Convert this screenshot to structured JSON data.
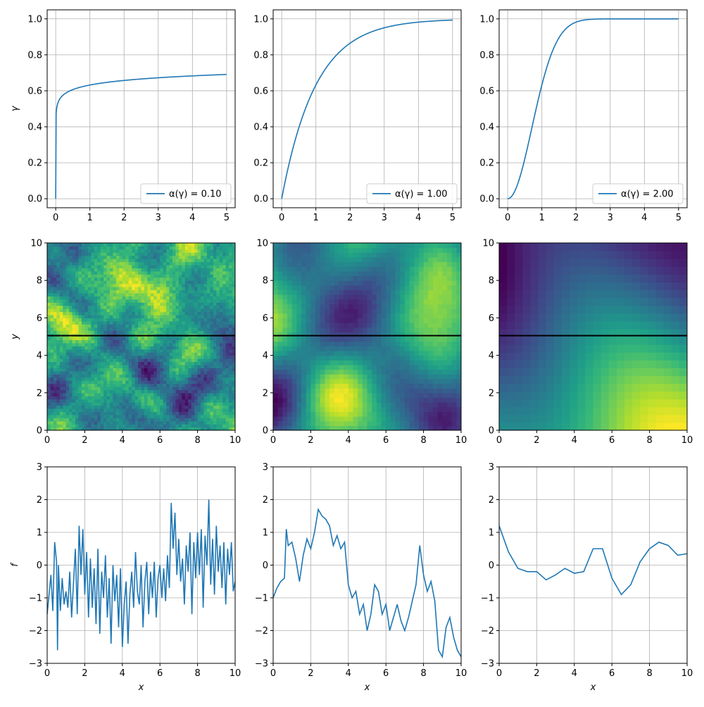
{
  "colors": {
    "line": "#1f77b4",
    "grid": "#b0b0b0",
    "hline": "#000000",
    "axis": "#000000"
  },
  "row_labels": {
    "row1_ylabel": "γ",
    "row2_ylabel": "y",
    "row3_ylabel": "f",
    "xlabel": "x"
  },
  "chart_data": [
    {
      "id": "p11",
      "type": "line",
      "grid": true,
      "xlim": [
        -0.25,
        5.25
      ],
      "ylim": [
        -0.05,
        1.05
      ],
      "xticks": [
        "0",
        "1",
        "2",
        "3",
        "4",
        "5"
      ],
      "yticks": [
        "0.0",
        "0.2",
        "0.4",
        "0.6",
        "0.8",
        "1.0"
      ],
      "ylabel": "γ",
      "alpha": 0.1,
      "legend": {
        "prefix": "α(γ) = ",
        "value": "0.10",
        "loc": "lower-right"
      },
      "series": [
        {
          "x": [
            0,
            5
          ],
          "function": "1 - exp(-x^alpha)"
        }
      ]
    },
    {
      "id": "p12",
      "type": "line",
      "grid": true,
      "xlim": [
        -0.25,
        5.25
      ],
      "ylim": [
        -0.05,
        1.05
      ],
      "xticks": [
        "0",
        "1",
        "2",
        "3",
        "4",
        "5"
      ],
      "yticks": [
        "0.0",
        "0.2",
        "0.4",
        "0.6",
        "0.8",
        "1.0"
      ],
      "alpha": 1.0,
      "legend": {
        "prefix": "α(γ) = ",
        "value": "1.00",
        "loc": "lower-right"
      },
      "series": [
        {
          "x": [
            0,
            5
          ],
          "function": "1 - exp(-x^alpha)"
        }
      ]
    },
    {
      "id": "p13",
      "type": "line",
      "grid": true,
      "xlim": [
        -0.25,
        5.25
      ],
      "ylim": [
        -0.05,
        1.05
      ],
      "xticks": [
        "0",
        "1",
        "2",
        "3",
        "4",
        "5"
      ],
      "yticks": [
        "0.0",
        "0.2",
        "0.4",
        "0.6",
        "0.8",
        "1.0"
      ],
      "alpha": 2.0,
      "legend": {
        "prefix": "α(γ) = ",
        "value": "2.00",
        "loc": "lower-right"
      },
      "series": [
        {
          "x": [
            0,
            5
          ],
          "function": "1 - exp(-x^alpha)"
        }
      ]
    },
    {
      "id": "p21",
      "type": "heatmap",
      "colormap": "viridis",
      "xlim": [
        0,
        10
      ],
      "ylim": [
        0,
        10
      ],
      "xticks": [
        "0",
        "2",
        "4",
        "6",
        "8",
        "10"
      ],
      "yticks": [
        "0",
        "2",
        "4",
        "6",
        "8",
        "10"
      ],
      "ylabel": "y",
      "hline_y": 5.05,
      "roughness": "high"
    },
    {
      "id": "p22",
      "type": "heatmap",
      "colormap": "viridis",
      "xlim": [
        0,
        10
      ],
      "ylim": [
        0,
        10
      ],
      "xticks": [
        "0",
        "2",
        "4",
        "6",
        "8",
        "10"
      ],
      "yticks": [
        "0",
        "2",
        "4",
        "6",
        "8",
        "10"
      ],
      "hline_y": 5.05,
      "roughness": "medium"
    },
    {
      "id": "p23",
      "type": "heatmap",
      "colormap": "viridis",
      "xlim": [
        0,
        10
      ],
      "ylim": [
        0,
        10
      ],
      "xticks": [
        "0",
        "2",
        "4",
        "6",
        "8",
        "10"
      ],
      "yticks": [
        "0",
        "2",
        "4",
        "6",
        "8",
        "10"
      ],
      "hline_y": 5.05,
      "roughness": "smooth"
    },
    {
      "id": "p31",
      "type": "line",
      "grid": true,
      "xlim": [
        0,
        10
      ],
      "ylim": [
        -3,
        3
      ],
      "xticks": [
        "0",
        "2",
        "4",
        "6",
        "8",
        "10"
      ],
      "yticks": [
        "−3",
        "−2",
        "−1",
        "0",
        "1",
        "2",
        "3"
      ],
      "ylabel": "f",
      "xlabel": "x",
      "series": [
        {
          "x": [
            0,
            0.2,
            0.3,
            0.4,
            0.5,
            0.55,
            0.6,
            0.7,
            0.8,
            0.9,
            1.0,
            1.1,
            1.2,
            1.3,
            1.5,
            1.6,
            1.7,
            1.8,
            1.9,
            2.0,
            2.1,
            2.2,
            2.3,
            2.4,
            2.5,
            2.6,
            2.7,
            2.8,
            2.9,
            3.0,
            3.1,
            3.2,
            3.3,
            3.4,
            3.5,
            3.6,
            3.7,
            3.8,
            3.9,
            4.0,
            4.1,
            4.2,
            4.3,
            4.4,
            4.5,
            4.6,
            4.7,
            4.8,
            4.9,
            5.0,
            5.1,
            5.2,
            5.3,
            5.4,
            5.5,
            5.6,
            5.7,
            5.8,
            5.9,
            6.0,
            6.1,
            6.2,
            6.3,
            6.4,
            6.5,
            6.6,
            6.7,
            6.8,
            6.9,
            7.0,
            7.1,
            7.2,
            7.3,
            7.4,
            7.5,
            7.6,
            7.7,
            7.8,
            7.9,
            8.0,
            8.1,
            8.2,
            8.3,
            8.4,
            8.5,
            8.6,
            8.7,
            8.8,
            8.9,
            9.0,
            9.1,
            9.2,
            9.3,
            9.4,
            9.5,
            9.6,
            9.7,
            9.8,
            9.9,
            10.0
          ],
          "y": [
            -1.5,
            -0.3,
            -1.4,
            0.7,
            0.1,
            -2.6,
            0.0,
            -1.4,
            -0.4,
            -1.2,
            -0.8,
            -1.3,
            -0.2,
            -1.6,
            0.5,
            -1.5,
            1.2,
            -0.3,
            1.1,
            -0.9,
            0.4,
            -1.6,
            0.2,
            -1.3,
            -0.1,
            -1.8,
            0.5,
            -2.1,
            -0.2,
            -1.0,
            0.3,
            -1.6,
            -0.4,
            -2.4,
            0.0,
            -1.1,
            -0.3,
            -1.9,
            -0.1,
            -2.5,
            -1.2,
            -0.5,
            -2.4,
            -0.9,
            -0.2,
            -1.3,
            0.4,
            -0.8,
            -1.2,
            0.0,
            -1.9,
            -0.5,
            0.1,
            -1.5,
            -0.2,
            -1.0,
            0.1,
            -1.6,
            -0.4,
            0.0,
            -1.0,
            -0.1,
            -1.1,
            0.3,
            -0.7,
            1.9,
            0.5,
            1.6,
            -0.3,
            0.8,
            -0.5,
            0.2,
            -1.2,
            0.6,
            -0.2,
            1.0,
            -1.5,
            0.7,
            -0.4,
            1.0,
            -0.3,
            1.1,
            -1.3,
            0.9,
            0.0,
            2.0,
            -0.6,
            0.8,
            -0.9,
            1.2,
            -0.2,
            0.6,
            -0.7,
            0.7,
            -1.2,
            0.5,
            -0.3,
            0.7,
            -0.8,
            -0.5
          ]
        }
      ]
    },
    {
      "id": "p32",
      "type": "line",
      "grid": true,
      "xlim": [
        0,
        10
      ],
      "ylim": [
        -3,
        3
      ],
      "xticks": [
        "0",
        "2",
        "4",
        "6",
        "8",
        "10"
      ],
      "yticks": [
        "−3",
        "−2",
        "−1",
        "0",
        "1",
        "2",
        "3"
      ],
      "xlabel": "x",
      "series": [
        {
          "x": [
            0,
            0.2,
            0.4,
            0.6,
            0.7,
            0.8,
            1.0,
            1.2,
            1.4,
            1.6,
            1.8,
            2.0,
            2.2,
            2.4,
            2.6,
            2.8,
            3.0,
            3.2,
            3.4,
            3.6,
            3.8,
            4.0,
            4.2,
            4.4,
            4.6,
            4.8,
            5.0,
            5.2,
            5.4,
            5.6,
            5.8,
            6.0,
            6.2,
            6.4,
            6.6,
            6.8,
            7.0,
            7.2,
            7.4,
            7.6,
            7.8,
            8.0,
            8.2,
            8.4,
            8.6,
            8.8,
            9.0,
            9.2,
            9.4,
            9.6,
            9.8,
            10.0
          ],
          "y": [
            -1.0,
            -0.7,
            -0.5,
            -0.4,
            1.1,
            0.6,
            0.7,
            0.2,
            -0.5,
            0.3,
            0.8,
            0.5,
            1.0,
            1.7,
            1.5,
            1.4,
            1.2,
            0.6,
            0.9,
            0.5,
            0.7,
            -0.6,
            -1.0,
            -0.8,
            -1.5,
            -1.2,
            -2.0,
            -1.5,
            -0.6,
            -0.8,
            -1.5,
            -1.2,
            -2.0,
            -1.6,
            -1.2,
            -1.7,
            -2.0,
            -1.6,
            -1.1,
            -0.6,
            0.6,
            -0.3,
            -0.8,
            -0.5,
            -1.1,
            -2.6,
            -2.8,
            -1.9,
            -1.6,
            -2.2,
            -2.6,
            -2.8
          ]
        }
      ]
    },
    {
      "id": "p33",
      "type": "line",
      "grid": true,
      "xlim": [
        0,
        10
      ],
      "ylim": [
        -3,
        3
      ],
      "xticks": [
        "0",
        "2",
        "4",
        "6",
        "8",
        "10"
      ],
      "yticks": [
        "−3",
        "−2",
        "−1",
        "0",
        "1",
        "2",
        "3"
      ],
      "xlabel": "x",
      "series": [
        {
          "x": [
            0,
            0.5,
            1.0,
            1.5,
            2.0,
            2.5,
            3.0,
            3.5,
            4.0,
            4.5,
            5.0,
            5.5,
            6.0,
            6.5,
            7.0,
            7.5,
            8.0,
            8.5,
            9.0,
            9.5,
            10.0
          ],
          "y": [
            1.2,
            0.4,
            -0.1,
            -0.2,
            -0.2,
            -0.45,
            -0.3,
            -0.1,
            -0.25,
            -0.2,
            0.5,
            0.5,
            -0.4,
            -0.9,
            -0.6,
            0.1,
            0.5,
            0.7,
            0.6,
            0.3,
            0.35
          ]
        }
      ]
    }
  ]
}
